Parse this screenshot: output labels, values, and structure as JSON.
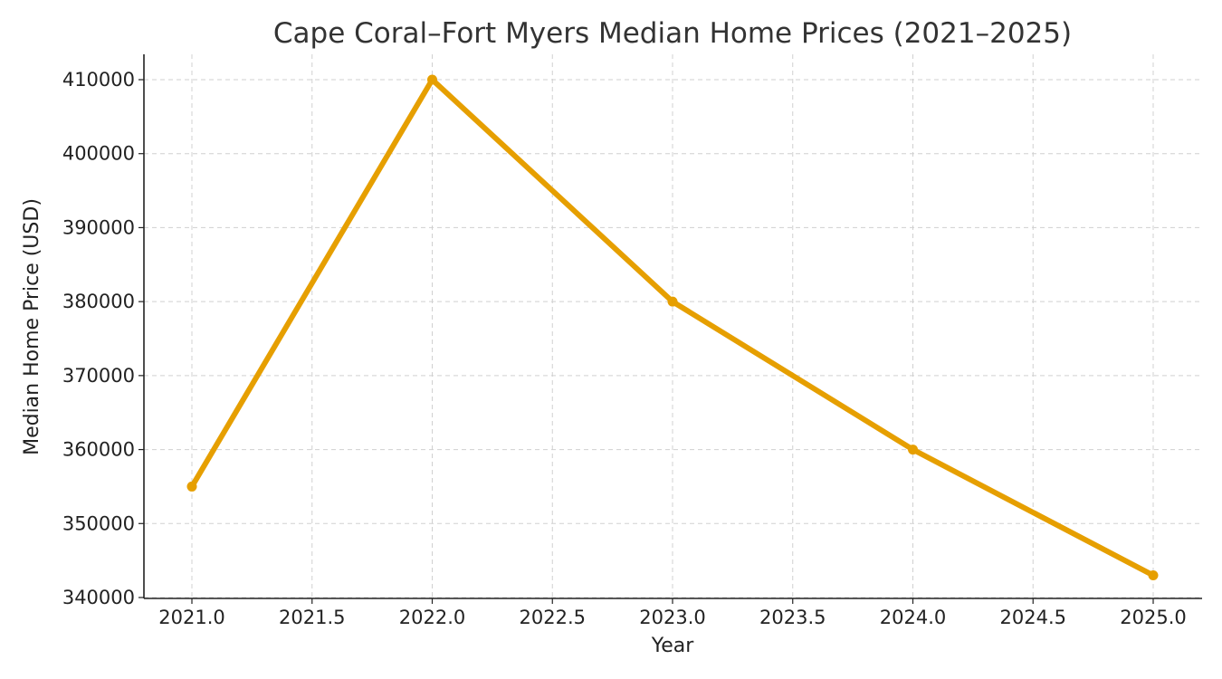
{
  "chart_data": {
    "type": "line",
    "title": "Cape Coral–Fort Myers Median Home Prices (2021–2025)",
    "xlabel": "Year",
    "ylabel": "Median Home Price (USD)",
    "x": [
      2021,
      2022,
      2023,
      2024,
      2025
    ],
    "series": [
      {
        "values": [
          355000,
          410000,
          380000,
          360000,
          343000
        ],
        "color": "#E69F00"
      }
    ],
    "xlim": [
      2020.8,
      2025.2
    ],
    "ylim": [
      340000,
      413000
    ],
    "xticks": [
      "2021.0",
      "2021.5",
      "2022.0",
      "2022.5",
      "2023.0",
      "2023.5",
      "2024.0",
      "2024.5",
      "2025.0"
    ],
    "yticks": [
      "340000",
      "350000",
      "360000",
      "370000",
      "380000",
      "390000",
      "400000",
      "410000"
    ],
    "grid": true,
    "legend": "none"
  }
}
